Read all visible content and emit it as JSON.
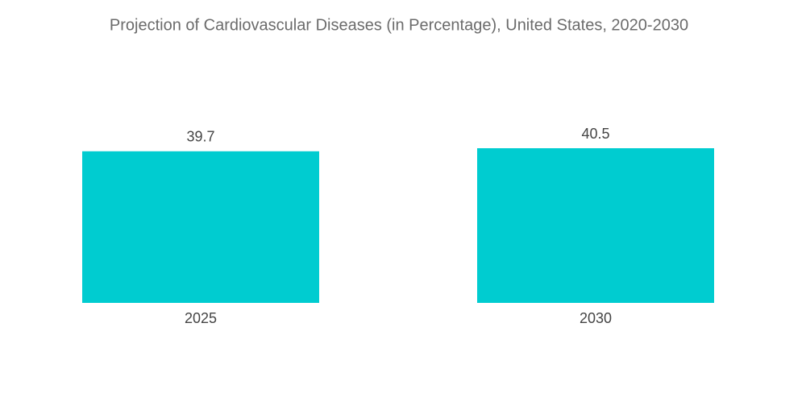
{
  "chart_data": {
    "type": "bar",
    "title": "Projection of Cardiovascular Diseases (in Percentage), United States, 2020-2030",
    "categories": [
      "2025",
      "2030"
    ],
    "values": [
      39.7,
      40.5
    ],
    "color": "#00ccd0"
  }
}
